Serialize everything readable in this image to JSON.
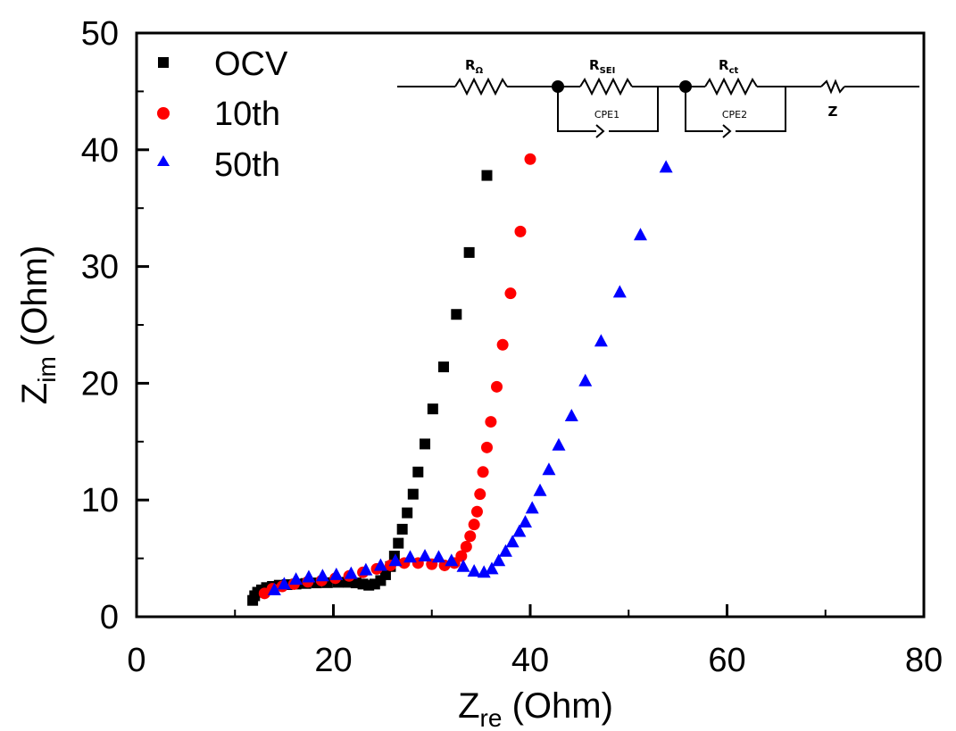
{
  "chart_data": {
    "type": "scatter",
    "xlabel": {
      "main": "Z",
      "sub": "re",
      "unit": " (Ohm)"
    },
    "ylabel": {
      "main": "Z",
      "sub": "im",
      "unit": " (Ohm)"
    },
    "xlim": [
      0,
      80
    ],
    "ylim": [
      0,
      50
    ],
    "xticks": [
      0,
      20,
      40,
      60,
      80
    ],
    "yticks": [
      0,
      10,
      20,
      30,
      40,
      50
    ],
    "grid": false,
    "legend_position": "top-left",
    "series": [
      {
        "name": "OCV",
        "marker": "square",
        "color": "#000000",
        "points": [
          [
            11.8,
            1.4
          ],
          [
            12.0,
            1.8
          ],
          [
            12.3,
            2.1
          ],
          [
            12.7,
            2.3
          ],
          [
            13.2,
            2.5
          ],
          [
            13.8,
            2.6
          ],
          [
            14.5,
            2.7
          ],
          [
            15.3,
            2.75
          ],
          [
            16.2,
            2.8
          ],
          [
            17.2,
            2.85
          ],
          [
            18.3,
            2.9
          ],
          [
            19.4,
            2.92
          ],
          [
            20.5,
            2.95
          ],
          [
            21.5,
            2.95
          ],
          [
            22.3,
            2.9
          ],
          [
            23.0,
            2.8
          ],
          [
            23.6,
            2.7
          ],
          [
            24.2,
            2.8
          ],
          [
            24.8,
            3.1
          ],
          [
            25.3,
            3.6
          ],
          [
            25.8,
            4.3
          ],
          [
            26.2,
            5.2
          ],
          [
            26.6,
            6.3
          ],
          [
            27.0,
            7.5
          ],
          [
            27.5,
            8.9
          ],
          [
            28.1,
            10.5
          ],
          [
            28.6,
            12.4
          ],
          [
            29.3,
            14.8
          ],
          [
            30.1,
            17.8
          ],
          [
            31.2,
            21.4
          ],
          [
            32.5,
            25.9
          ],
          [
            33.8,
            31.2
          ],
          [
            35.6,
            37.8
          ]
        ]
      },
      {
        "name": "10th",
        "marker": "circle",
        "color": "#ff0000",
        "points": [
          [
            13.0,
            2.0
          ],
          [
            13.8,
            2.4
          ],
          [
            14.8,
            2.6
          ],
          [
            16.0,
            2.8
          ],
          [
            17.4,
            3.0
          ],
          [
            18.8,
            3.1
          ],
          [
            20.2,
            3.3
          ],
          [
            21.6,
            3.5
          ],
          [
            23.0,
            3.8
          ],
          [
            24.4,
            4.1
          ],
          [
            25.8,
            4.4
          ],
          [
            27.2,
            4.6
          ],
          [
            28.6,
            4.6
          ],
          [
            30.0,
            4.5
          ],
          [
            31.3,
            4.4
          ],
          [
            32.3,
            4.6
          ],
          [
            33.0,
            5.2
          ],
          [
            33.5,
            6.0
          ],
          [
            33.9,
            6.9
          ],
          [
            34.3,
            7.9
          ],
          [
            34.6,
            9.0
          ],
          [
            34.9,
            10.5
          ],
          [
            35.2,
            12.4
          ],
          [
            35.6,
            14.5
          ],
          [
            36.0,
            16.7
          ],
          [
            36.6,
            19.7
          ],
          [
            37.2,
            23.3
          ],
          [
            38.0,
            27.7
          ],
          [
            39.0,
            33.0
          ],
          [
            40.0,
            39.2
          ]
        ]
      },
      {
        "name": "50th",
        "marker": "triangle",
        "color": "#0000ff",
        "points": [
          [
            14.0,
            2.3
          ],
          [
            15.0,
            2.8
          ],
          [
            16.2,
            3.2
          ],
          [
            17.5,
            3.4
          ],
          [
            18.9,
            3.5
          ],
          [
            20.3,
            3.6
          ],
          [
            21.8,
            3.7
          ],
          [
            23.3,
            4.0
          ],
          [
            24.8,
            4.4
          ],
          [
            26.3,
            4.8
          ],
          [
            27.8,
            5.1
          ],
          [
            29.3,
            5.2
          ],
          [
            30.7,
            5.1
          ],
          [
            32.0,
            4.8
          ],
          [
            33.2,
            4.3
          ],
          [
            34.3,
            3.9
          ],
          [
            35.3,
            3.8
          ],
          [
            36.1,
            4.1
          ],
          [
            36.8,
            4.8
          ],
          [
            37.5,
            5.6
          ],
          [
            38.2,
            6.4
          ],
          [
            38.9,
            7.3
          ],
          [
            39.5,
            8.1
          ],
          [
            40.2,
            9.3
          ],
          [
            41.0,
            10.8
          ],
          [
            41.9,
            12.6
          ],
          [
            42.9,
            14.7
          ],
          [
            44.2,
            17.2
          ],
          [
            45.6,
            20.2
          ],
          [
            47.2,
            23.6
          ],
          [
            49.1,
            27.8
          ],
          [
            51.2,
            32.7
          ],
          [
            53.8,
            38.5
          ]
        ]
      }
    ]
  },
  "circuit": {
    "r_ohm": {
      "main": "R",
      "sub": "Ω"
    },
    "r_sei": {
      "main": "R",
      "sub": "SEI"
    },
    "r_ct": {
      "main": "R",
      "sub": "ct"
    },
    "cpe1": "CPE1",
    "cpe2": "CPE2",
    "z": "Z"
  }
}
